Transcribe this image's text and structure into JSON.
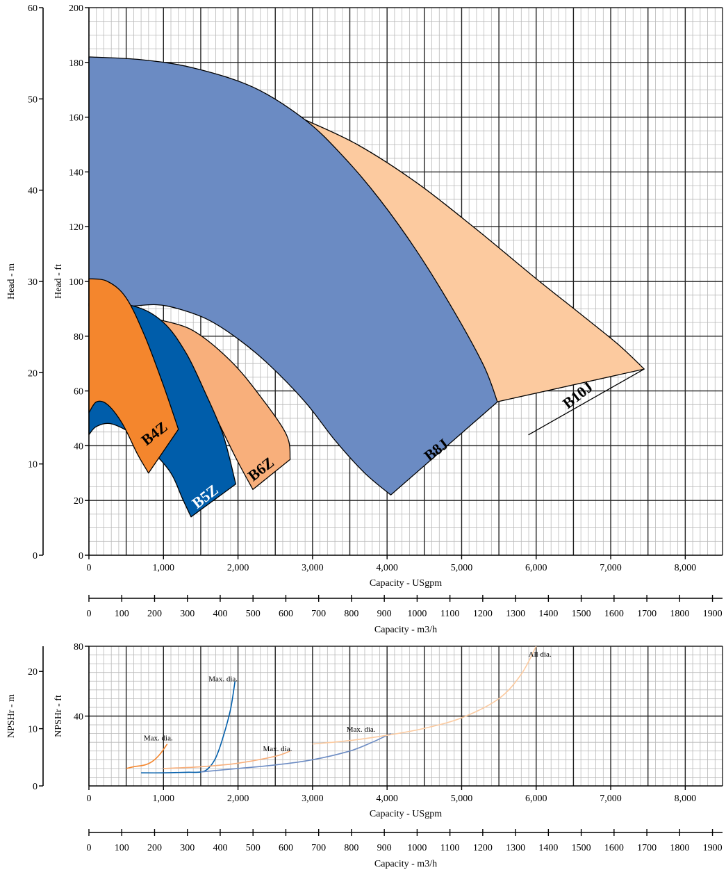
{
  "chart_data": [
    {
      "type": "area",
      "name": "performance",
      "xlabel": "Capacity - USgpm",
      "ylabel_ft": "Head - ft",
      "ylabel_m": "Head - m",
      "xlim": [
        0,
        8500
      ],
      "ylim_ft": [
        0,
        200
      ],
      "ylim_m": [
        0,
        60
      ],
      "x_ticks": [
        0,
        1000,
        2000,
        3000,
        4000,
        5000,
        6000,
        7000,
        8000
      ],
      "x_tick_labels": [
        "0",
        "1,000",
        "2,000",
        "3,000",
        "4,000",
        "5,000",
        "6,000",
        "7,000",
        "8,000"
      ],
      "y_ticks_ft": [
        0,
        20,
        40,
        60,
        80,
        100,
        120,
        140,
        160,
        180,
        200
      ],
      "y_tick_labels_ft": [
        "0",
        "20",
        "40",
        "60",
        "80",
        "100",
        "120",
        "140",
        "160",
        "180",
        "200"
      ],
      "y_ticks_m": [
        0,
        10,
        20,
        30,
        40,
        50,
        60
      ],
      "y_tick_labels_m": [
        "0",
        "10",
        "20",
        "30",
        "40",
        "50",
        "60"
      ],
      "secondary_xlabel": "Capacity - m3/h",
      "secondary_x_ticks": [
        0,
        100,
        200,
        300,
        400,
        500,
        600,
        700,
        800,
        900,
        1000,
        1100,
        1200,
        1300,
        1400,
        1500,
        1600,
        1700,
        1800,
        1900
      ],
      "secondary_x_tick_labels": [
        "0",
        "100",
        "200",
        "300",
        "400",
        "500",
        "600",
        "700",
        "800",
        "900",
        "1000",
        "1100",
        "1200",
        "1300",
        "1400",
        "1500",
        "1600",
        "1700",
        "1800",
        "1900"
      ],
      "grid": true,
      "regions": [
        {
          "name": "B10J",
          "color": "#FCCA9F",
          "outer": [
            [
              2900,
              159
            ],
            [
              3600,
              150
            ],
            [
              4400,
              136
            ],
            [
              5200,
              119
            ],
            [
              6000,
              101
            ],
            [
              6600,
              88
            ],
            [
              7100,
              77
            ],
            [
              7450,
              68
            ]
          ],
          "inner": [
            [
              5470,
              56
            ],
            [
              5200,
              66
            ],
            [
              4800,
              78
            ],
            [
              4200,
              97
            ],
            [
              3700,
              115
            ],
            [
              3300,
              130
            ],
            [
              2900,
              152
            ]
          ],
          "bottom": [
            [
              5470,
              56
            ],
            [
              5900,
              44
            ],
            [
              7450,
              68
            ]
          ],
          "label_x": 6600,
          "label_y": 57
        },
        {
          "name": "B8J",
          "color": "#6B8BC3",
          "outer": [
            [
              0,
              182
            ],
            [
              700,
              181
            ],
            [
              1400,
              178
            ],
            [
              2200,
              171
            ],
            [
              2900,
              159
            ],
            [
              3400,
              146
            ],
            [
              3900,
              130
            ],
            [
              4400,
              111
            ],
            [
              4900,
              89
            ],
            [
              5300,
              69
            ],
            [
              5480,
              56
            ]
          ],
          "inner": [
            [
              4050,
              22
            ],
            [
              3700,
              30
            ],
            [
              3300,
              42
            ],
            [
              2900,
              56
            ],
            [
              2400,
              70
            ],
            [
              2000,
              79
            ],
            [
              1600,
              86
            ],
            [
              1200,
              90
            ],
            [
              900,
              91.5
            ],
            [
              550,
              91
            ],
            [
              0,
              91
            ]
          ],
          "bottom": [
            [
              5480,
              56
            ],
            [
              4050,
              22
            ]
          ],
          "label_x": 4700,
          "label_y": 37
        },
        {
          "name": "B6Z",
          "color": "#F8AF7B",
          "outer": [
            [
              950,
              86
            ],
            [
              1400,
              82
            ],
            [
              1900,
              71
            ],
            [
              2300,
              58
            ],
            [
              2650,
              44
            ],
            [
              2700,
              35
            ]
          ],
          "inner": [
            [
              2200,
              24
            ],
            [
              2000,
              34
            ],
            [
              1800,
              45
            ],
            [
              1600,
              56
            ],
            [
              1400,
              65
            ],
            [
              1150,
              75
            ],
            [
              950,
              81
            ]
          ],
          "bottom": [
            [
              2700,
              35
            ],
            [
              2200,
              24
            ]
          ],
          "label_x": 2350,
          "label_y": 30
        },
        {
          "name": "B5Z",
          "color": "#005DAA",
          "outer": [
            [
              0,
              92
            ],
            [
              600,
              91
            ],
            [
              1000,
              85
            ],
            [
              1300,
              74
            ],
            [
              1550,
              60
            ],
            [
              1800,
              44
            ],
            [
              1970,
              26
            ]
          ],
          "inner": [
            [
              1370,
              14
            ],
            [
              1250,
              21
            ],
            [
              1100,
              30
            ],
            [
              850,
              38
            ],
            [
              600,
              44
            ],
            [
              300,
              48
            ],
            [
              100,
              47
            ],
            [
              0,
              44
            ]
          ],
          "bottom": [
            [
              1970,
              26
            ],
            [
              1370,
              14
            ]
          ],
          "label_x": 1600,
          "label_y": 20
        },
        {
          "name": "B4Z",
          "color": "#F4862D",
          "outer": [
            [
              0,
              101
            ],
            [
              250,
              100
            ],
            [
              500,
              94
            ],
            [
              750,
              80
            ],
            [
              1000,
              62
            ],
            [
              1200,
              46
            ]
          ],
          "inner": [
            [
              800,
              30
            ],
            [
              650,
              37
            ],
            [
              450,
              48
            ],
            [
              250,
              55
            ],
            [
              100,
              56
            ],
            [
              0,
              52
            ]
          ],
          "bottom": [
            [
              1200,
              46
            ],
            [
              800,
              30
            ]
          ],
          "label_x": 920,
          "label_y": 43
        }
      ]
    },
    {
      "type": "line",
      "name": "npsh",
      "xlabel": "Capacity - USgpm",
      "ylabel_ft": "NPSHr - ft",
      "ylabel_m": "NPSHr - m",
      "xlim": [
        0,
        8500
      ],
      "ylim_ft": [
        0,
        80
      ],
      "ylim_m": [
        0,
        24.4
      ],
      "x_ticks": [
        0,
        1000,
        2000,
        3000,
        4000,
        5000,
        6000,
        7000,
        8000
      ],
      "x_tick_labels": [
        "0",
        "1,000",
        "2,000",
        "3,000",
        "4,000",
        "5,000",
        "6,000",
        "7,000",
        "8,000"
      ],
      "y_ticks_ft": [
        40,
        80
      ],
      "y_tick_labels_ft": [
        "40",
        "80"
      ],
      "y_ticks_m": [
        0,
        10,
        20
      ],
      "y_tick_labels_m": [
        "0",
        "10",
        "20"
      ],
      "secondary_xlabel": "Capacity - m3/h",
      "secondary_x_ticks": [
        0,
        100,
        200,
        300,
        400,
        500,
        600,
        700,
        800,
        900,
        1000,
        1100,
        1200,
        1300,
        1400,
        1500,
        1600,
        1700,
        1800,
        1900
      ],
      "secondary_x_tick_labels": [
        "0",
        "100",
        "200",
        "300",
        "400",
        "500",
        "600",
        "700",
        "800",
        "900",
        "1000",
        "1100",
        "1200",
        "1300",
        "1400",
        "1500",
        "1600",
        "1700",
        "1800",
        "1900"
      ],
      "grid": true,
      "series": [
        {
          "color": "#F4862D",
          "x": [
            500,
            600,
            750,
            850,
            950,
            1050
          ],
          "y": [
            10,
            11,
            12,
            14,
            18,
            24
          ]
        },
        {
          "color": "#005DAA",
          "x": [
            700,
            1000,
            1300,
            1500,
            1600,
            1700,
            1800,
            1900,
            1960
          ],
          "y": [
            7.5,
            7.5,
            7.8,
            8,
            10,
            16,
            28,
            44,
            60
          ]
        },
        {
          "color": "#F8AF7B",
          "x": [
            1000,
            1500,
            2000,
            2500,
            2700
          ],
          "y": [
            10,
            11,
            13,
            17,
            20
          ]
        },
        {
          "color": "#6B8BC3",
          "x": [
            1500,
            2000,
            2500,
            3000,
            3500,
            3800,
            4050
          ],
          "y": [
            8,
            10,
            12,
            15,
            20,
            25,
            30
          ]
        },
        {
          "color": "#FCCA9F",
          "x": [
            3000,
            3500,
            4000,
            4500,
            5000,
            5500,
            5800,
            6000
          ],
          "y": [
            24,
            26,
            29,
            33,
            39,
            50,
            64,
            80
          ]
        }
      ],
      "annotations": [
        {
          "text": "Max. dia.",
          "x": 930,
          "y": 26
        },
        {
          "text": "Max. dia.",
          "x": 1800,
          "y": 60
        },
        {
          "text": "Max. dia.",
          "x": 2530,
          "y": 20
        },
        {
          "text": "Max. dia.",
          "x": 3650,
          "y": 31
        },
        {
          "text": "All dia.",
          "x": 6050,
          "y": 74
        }
      ]
    }
  ]
}
